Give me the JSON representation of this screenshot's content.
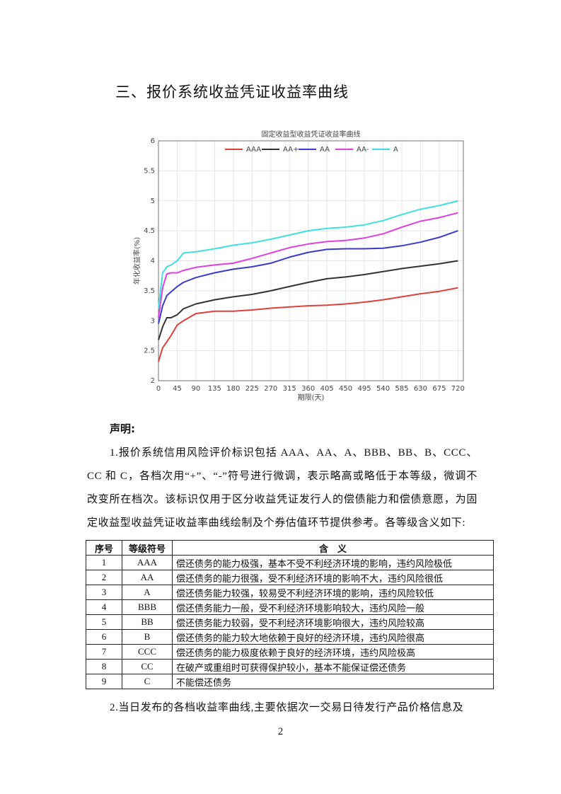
{
  "heading": "三、报价系统收益凭证收益率曲线",
  "chart_data": {
    "type": "line",
    "title": "固定收益型收益凭证收益率曲线",
    "x_label": "期限(天)",
    "y_label": "年化收益率(%)",
    "x": [
      0,
      10,
      20,
      30,
      45,
      60,
      90,
      135,
      180,
      225,
      270,
      315,
      360,
      405,
      450,
      495,
      540,
      585,
      630,
      675,
      720
    ],
    "series": [
      {
        "name": "AAA",
        "color": "#e0403a",
        "values": [
          2.32,
          2.55,
          2.65,
          2.75,
          2.93,
          3.0,
          3.12,
          3.16,
          3.16,
          3.18,
          3.21,
          3.23,
          3.25,
          3.26,
          3.28,
          3.31,
          3.35,
          3.4,
          3.45,
          3.49,
          3.55
        ]
      },
      {
        "name": "AA+",
        "color": "#333333",
        "values": [
          2.68,
          2.9,
          3.05,
          3.05,
          3.1,
          3.2,
          3.28,
          3.35,
          3.4,
          3.44,
          3.5,
          3.57,
          3.64,
          3.7,
          3.73,
          3.77,
          3.82,
          3.87,
          3.91,
          3.95,
          4.0
        ]
      },
      {
        "name": "AA",
        "color": "#3a3acc",
        "values": [
          2.95,
          3.25,
          3.42,
          3.48,
          3.57,
          3.64,
          3.72,
          3.8,
          3.86,
          3.9,
          3.96,
          4.06,
          4.14,
          4.19,
          4.2,
          4.2,
          4.21,
          4.25,
          4.31,
          4.39,
          4.5
        ]
      },
      {
        "name": "AA-",
        "color": "#e040e0",
        "values": [
          3.05,
          3.55,
          3.78,
          3.8,
          3.8,
          3.84,
          3.89,
          3.93,
          3.96,
          4.04,
          4.13,
          4.22,
          4.28,
          4.32,
          4.34,
          4.38,
          4.45,
          4.56,
          4.66,
          4.72,
          4.8
        ]
      },
      {
        "name": "A",
        "color": "#40e0e0",
        "values": [
          3.2,
          3.8,
          3.9,
          3.93,
          4.0,
          4.13,
          4.15,
          4.2,
          4.26,
          4.3,
          4.36,
          4.43,
          4.5,
          4.54,
          4.56,
          4.6,
          4.67,
          4.77,
          4.86,
          4.92,
          5.0
        ]
      }
    ],
    "xlim": [
      0,
      733
    ],
    "ylim": [
      2,
      6
    ],
    "xticks": [
      0,
      45,
      90,
      135,
      180,
      225,
      270,
      315,
      360,
      405,
      450,
      495,
      540,
      585,
      630,
      675,
      720
    ],
    "yticks": [
      2,
      2.5,
      3,
      3.5,
      4,
      4.5,
      5,
      5.5,
      6
    ],
    "grid": true,
    "legend": "top"
  },
  "statement": {
    "title": "声明:",
    "paragraphs": [
      "1.报价系统信用风险评价标识包括 AAA、AA、A、BBB、BB、B、CCC、CC 和 C，各档次用“+”、“-”符号进行微调，表示略高或略低于本等级，微调不改变所在档次。该标识仅用于区分收益凭证发行人的偿债能力和偿债意愿，为固定收益型收益凭证收益率曲线绘制及个券估值环节提供参考。各等级含义如下:",
      "2.当日发布的各档收益率曲线,主要依据次一交易日待发行产品价格信息及"
    ]
  },
  "table": {
    "header": [
      "序号",
      "等级符号",
      "含　义"
    ],
    "rows": [
      [
        "1",
        "AAA",
        "偿还债务的能力极强，基本不受不利经济环境的影响，违约风险极低"
      ],
      [
        "2",
        "AA",
        "偿还债务的能力很强，受不利经济环境的影响不大，违约风险很低"
      ],
      [
        "3",
        "A",
        "偿还债务能力较强，较易受不利经济环境的影响，违约风险较低"
      ],
      [
        "4",
        "BBB",
        "偿还债务能力一般，受不利经济环境影响较大，违约风险一般"
      ],
      [
        "5",
        "BB",
        "偿还债务能力较弱，受不利经济环境影响很大，违约风险较高"
      ],
      [
        "6",
        "B",
        "偿还债务的能力较大地依赖于良好的经济环境，违约风险很高"
      ],
      [
        "7",
        "CCC",
        "偿还债务的能力极度依赖于良好的经济环境，违约风险极高"
      ],
      [
        "8",
        "CC",
        "在破产或重组时可获得保护较小，基本不能保证偿还债务"
      ],
      [
        "9",
        "C",
        "不能偿还债务"
      ]
    ]
  },
  "page_number": 2
}
